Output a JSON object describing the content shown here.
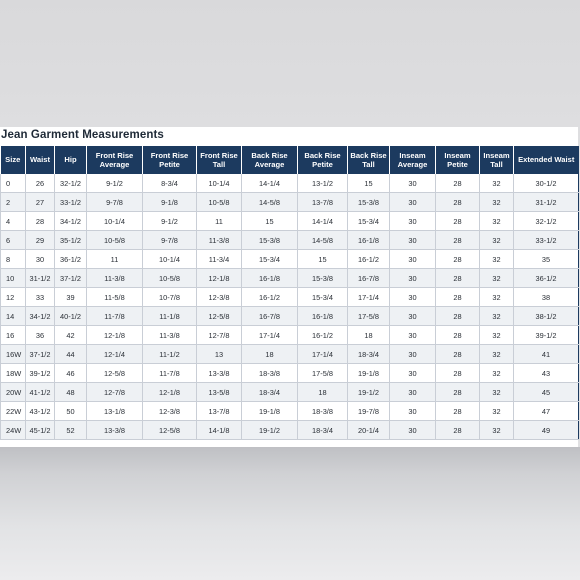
{
  "title": "Jean Garment Measurements",
  "headers": [
    "Size",
    "Waist",
    "Hip",
    "Front Rise Average",
    "Front Rise Petite",
    "Front Rise Tall",
    "Back Rise Average",
    "Back Rise Petite",
    "Back Rise Tall",
    "Inseam Average",
    "Inseam Petite",
    "Inseam Tall",
    "Extended Waist"
  ],
  "rows": [
    [
      "0",
      "26",
      "32-1/2",
      "9-1/2",
      "8-3/4",
      "10-1/4",
      "14-1/4",
      "13-1/2",
      "15",
      "30",
      "28",
      "32",
      "30-1/2"
    ],
    [
      "2",
      "27",
      "33-1/2",
      "9-7/8",
      "9-1/8",
      "10-5/8",
      "14-5/8",
      "13-7/8",
      "15-3/8",
      "30",
      "28",
      "32",
      "31-1/2"
    ],
    [
      "4",
      "28",
      "34-1/2",
      "10-1/4",
      "9-1/2",
      "11",
      "15",
      "14-1/4",
      "15-3/4",
      "30",
      "28",
      "32",
      "32-1/2"
    ],
    [
      "6",
      "29",
      "35-1/2",
      "10-5/8",
      "9-7/8",
      "11-3/8",
      "15-3/8",
      "14-5/8",
      "16-1/8",
      "30",
      "28",
      "32",
      "33-1/2"
    ],
    [
      "8",
      "30",
      "36-1/2",
      "11",
      "10-1/4",
      "11-3/4",
      "15-3/4",
      "15",
      "16-1/2",
      "30",
      "28",
      "32",
      "35"
    ],
    [
      "10",
      "31-1/2",
      "37-1/2",
      "11-3/8",
      "10-5/8",
      "12-1/8",
      "16-1/8",
      "15-3/8",
      "16-7/8",
      "30",
      "28",
      "32",
      "36-1/2"
    ],
    [
      "12",
      "33",
      "39",
      "11-5/8",
      "10-7/8",
      "12-3/8",
      "16-1/2",
      "15-3/4",
      "17-1/4",
      "30",
      "28",
      "32",
      "38"
    ],
    [
      "14",
      "34-1/2",
      "40-1/2",
      "11-7/8",
      "11-1/8",
      "12-5/8",
      "16-7/8",
      "16-1/8",
      "17-5/8",
      "30",
      "28",
      "32",
      "38-1/2"
    ],
    [
      "16",
      "36",
      "42",
      "12-1/8",
      "11-3/8",
      "12-7/8",
      "17-1/4",
      "16-1/2",
      "18",
      "30",
      "28",
      "32",
      "39-1/2"
    ],
    [
      "16W",
      "37-1/2",
      "44",
      "12-1/4",
      "11-1/2",
      "13",
      "18",
      "17-1/4",
      "18-3/4",
      "30",
      "28",
      "32",
      "41"
    ],
    [
      "18W",
      "39-1/2",
      "46",
      "12-5/8",
      "11-7/8",
      "13-3/8",
      "18-3/8",
      "17-5/8",
      "19-1/8",
      "30",
      "28",
      "32",
      "43"
    ],
    [
      "20W",
      "41-1/2",
      "48",
      "12-7/8",
      "12-1/8",
      "13-5/8",
      "18-3/4",
      "18",
      "19-1/2",
      "30",
      "28",
      "32",
      "45"
    ],
    [
      "22W",
      "43-1/2",
      "50",
      "13-1/8",
      "12-3/8",
      "13-7/8",
      "19-1/8",
      "18-3/8",
      "19-7/8",
      "30",
      "28",
      "32",
      "47"
    ],
    [
      "24W",
      "45-1/2",
      "52",
      "13-3/8",
      "12-5/8",
      "14-1/8",
      "19-1/2",
      "18-3/4",
      "20-1/4",
      "30",
      "28",
      "32",
      "49"
    ]
  ],
  "colors": {
    "header_bg": "#1c3a5f",
    "row_alt_bg": "#eef1f4",
    "grid": "#c9ced6"
  }
}
